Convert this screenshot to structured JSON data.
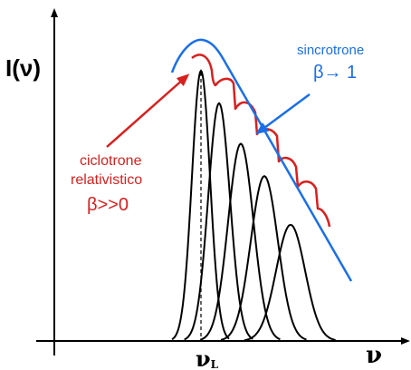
{
  "axes": {
    "y_label": "I(ν)",
    "x_label": "ν",
    "x_mark_label": "ν",
    "x_mark_subscript": "L"
  },
  "labels": {
    "synchrotron_line1": "sincrotrone",
    "synchrotron_line2": "β→ 1",
    "cyclotron_line1": "ciclotrone",
    "cyclotron_line2": "relativistico",
    "cyclotron_line3": "β>>0"
  },
  "colors": {
    "axis": "#000000",
    "peaks": "#000000",
    "synchrotron": "#1a6fe8",
    "cyclotron": "#d8201e",
    "text_black": "#000000"
  },
  "chart_data": {
    "type": "line",
    "x_unit": "multiples of ν_L",
    "harmonics": [
      {
        "order": 1,
        "relative_height": 1.0
      },
      {
        "order": 2,
        "relative_height": 0.88
      },
      {
        "order": 3,
        "relative_height": 0.73
      },
      {
        "order": 4,
        "relative_height": 0.61
      },
      {
        "order": 5,
        "relative_height": 0.43
      }
    ]
  }
}
